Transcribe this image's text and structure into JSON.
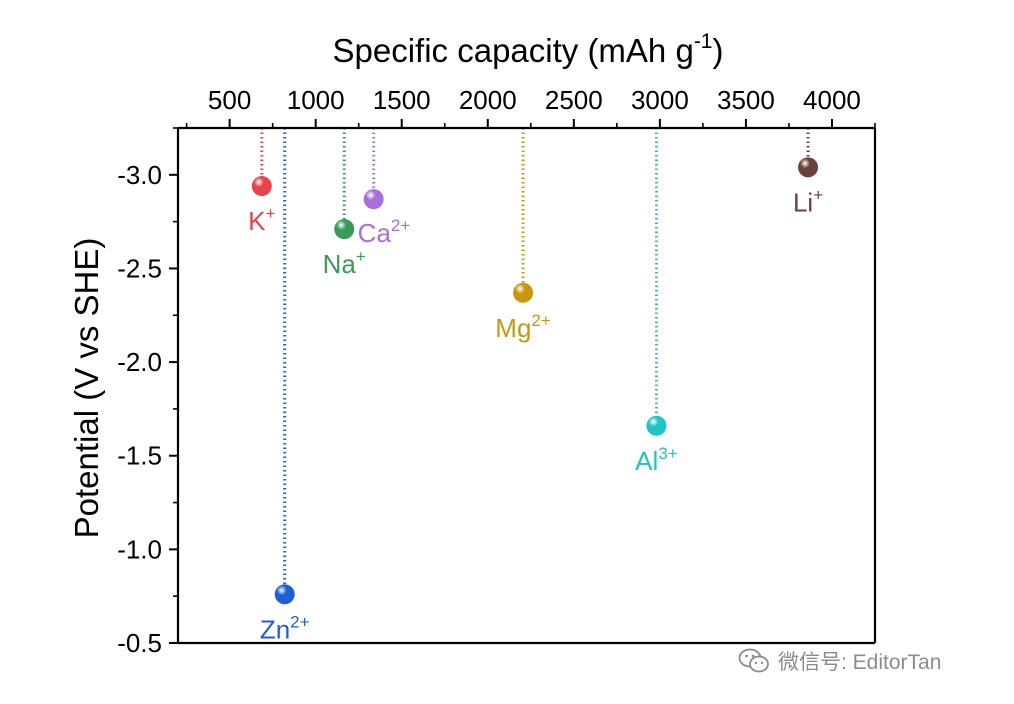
{
  "chart_data": {
    "type": "scatter",
    "title": "",
    "xlabel": "Specific capacity (mAh g",
    "xlabel_sup": "-1",
    "xlabel_tail": ")",
    "ylabel": "Potential (V vs SHE)",
    "x_axis_position": "top",
    "y_axis_inverted": true,
    "xlim": [
      200,
      4250
    ],
    "ylim": [
      -3.25,
      -0.5
    ],
    "xticks": [
      500,
      1000,
      1500,
      2000,
      2500,
      3000,
      3500,
      4000
    ],
    "xtick_labels": [
      "500",
      "1000",
      "1500",
      "2000",
      "2500",
      "3000",
      "3500",
      "4000"
    ],
    "yticks": [
      -3.0,
      -2.5,
      -2.0,
      -1.5,
      -1.0,
      -0.5
    ],
    "ytick_labels": [
      "-3.0",
      "-2.5",
      "-2.0",
      "-1.5",
      "-1.0",
      "-0.5"
    ],
    "grid": false,
    "drop_lines": "dotted vertical line from each point up to the top axis",
    "points": [
      {
        "ion": "K",
        "charge": "+",
        "x": 687,
        "y": -2.94,
        "color": "#e8434a",
        "label_pos": "below"
      },
      {
        "ion": "Zn",
        "charge": "2+",
        "x": 820,
        "y": -0.76,
        "color": "#1f5fd6",
        "label_pos": "below"
      },
      {
        "ion": "Na",
        "charge": "+",
        "x": 1166,
        "y": -2.71,
        "color": "#3a9a57",
        "label_pos": "below"
      },
      {
        "ion": "Ca",
        "charge": "2+",
        "x": 1337,
        "y": -2.87,
        "color": "#a86fdb",
        "label_pos": "right"
      },
      {
        "ion": "Mg",
        "charge": "2+",
        "x": 2205,
        "y": -2.37,
        "color": "#c8960f",
        "label_pos": "below"
      },
      {
        "ion": "Al",
        "charge": "3+",
        "x": 2980,
        "y": -1.66,
        "color": "#1fc4c4",
        "label_pos": "below"
      },
      {
        "ion": "Li",
        "charge": "+",
        "x": 3861,
        "y": -3.04,
        "color": "#6b3f3c",
        "label_pos": "below"
      }
    ]
  },
  "watermark": {
    "text": "微信号: EditorTan",
    "icon": "wechat-icon",
    "color": "#8c8c8c"
  }
}
